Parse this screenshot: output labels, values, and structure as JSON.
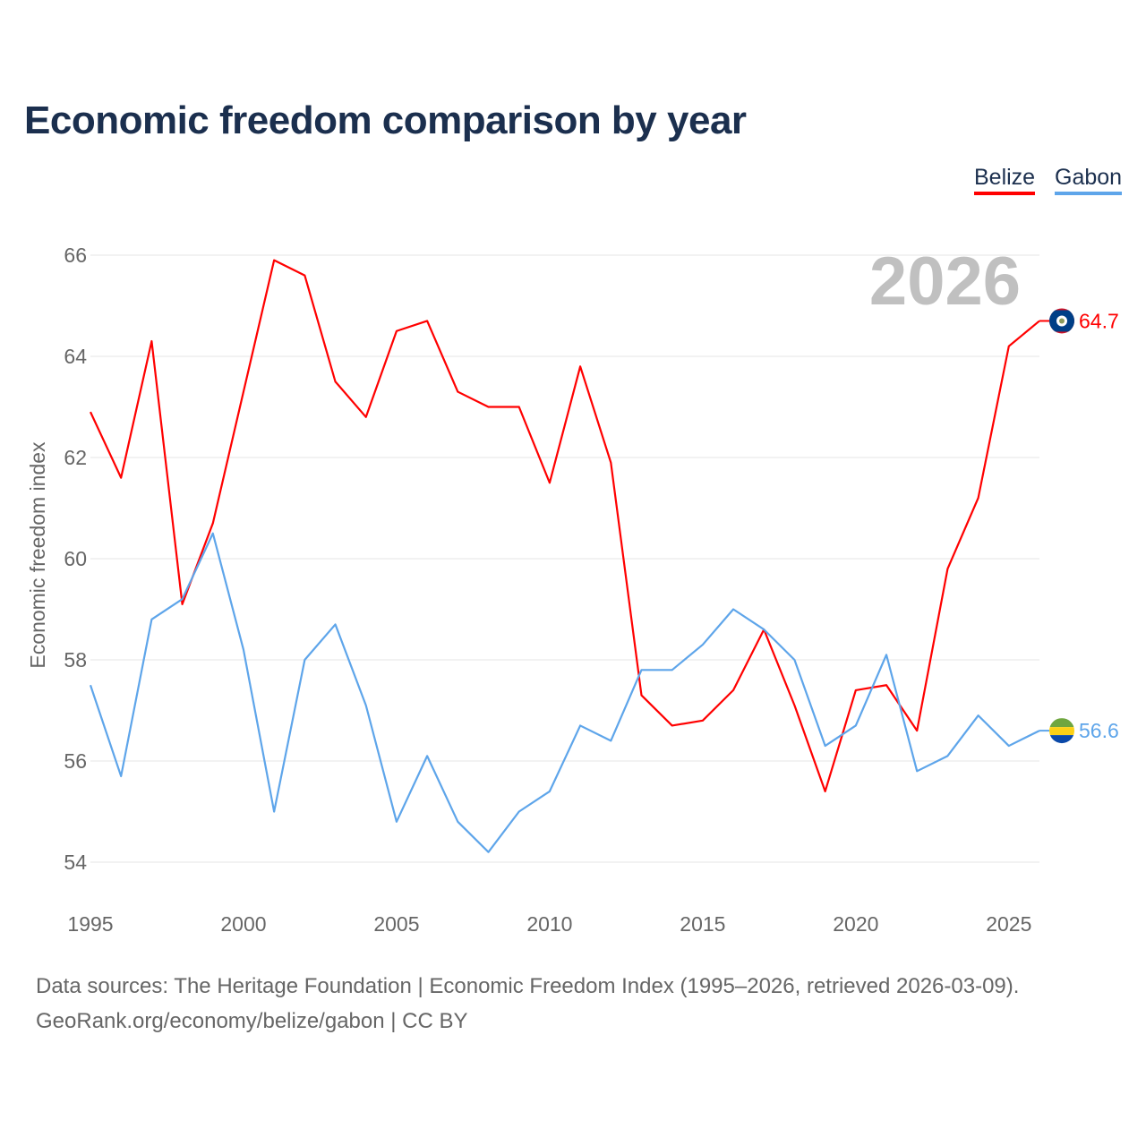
{
  "title": "Economic freedom comparison by year",
  "year_watermark": "2026",
  "footer": {
    "line1": "Data sources: The Heritage Foundation | Economic Freedom Index (1995–2026, retrieved 2026-03-09).",
    "line2": "GeoRank.org/economy/belize/gabon | CC BY"
  },
  "chart_data": {
    "type": "line",
    "title": "Economic freedom comparison by year",
    "xlabel": "",
    "ylabel": "Economic freedom index",
    "xlim": [
      1995,
      2026
    ],
    "ylim": [
      54,
      66
    ],
    "x_ticks": [
      "1995",
      "2000",
      "2005",
      "2010",
      "2015",
      "2020",
      "2025"
    ],
    "y_ticks": [
      "54",
      "56",
      "58",
      "60",
      "62",
      "64",
      "66"
    ],
    "grid": true,
    "legend_placement": "top-right",
    "x": [
      1995,
      1996,
      1997,
      1998,
      1999,
      2000,
      2001,
      2002,
      2003,
      2004,
      2005,
      2006,
      2007,
      2008,
      2009,
      2010,
      2011,
      2012,
      2013,
      2014,
      2015,
      2016,
      2017,
      2018,
      2019,
      2020,
      2021,
      2022,
      2023,
      2024,
      2025,
      2026
    ],
    "series": [
      {
        "name": "Belize",
        "color": "#ff0000",
        "end_label": "64.7",
        "flag": "belize-flag",
        "values": [
          62.9,
          61.6,
          64.3,
          59.1,
          60.7,
          63.3,
          65.9,
          65.6,
          63.5,
          62.8,
          64.5,
          64.7,
          63.3,
          63.0,
          63.0,
          61.5,
          63.8,
          61.9,
          57.3,
          56.7,
          56.8,
          57.4,
          58.6,
          57.1,
          55.4,
          57.4,
          57.5,
          56.6,
          59.8,
          61.2,
          64.2,
          64.7
        ]
      },
      {
        "name": "Gabon",
        "color": "#5ea5ea",
        "end_label": "56.6",
        "flag": "gabon-flag",
        "values": [
          57.5,
          55.7,
          58.8,
          59.2,
          60.5,
          58.2,
          55.0,
          58.0,
          58.7,
          57.1,
          54.8,
          56.1,
          54.8,
          54.2,
          55.0,
          55.4,
          56.7,
          56.4,
          57.8,
          57.8,
          58.3,
          59.0,
          58.6,
          58.0,
          56.3,
          56.7,
          58.1,
          55.8,
          56.1,
          56.9,
          56.3,
          56.6
        ]
      }
    ]
  }
}
